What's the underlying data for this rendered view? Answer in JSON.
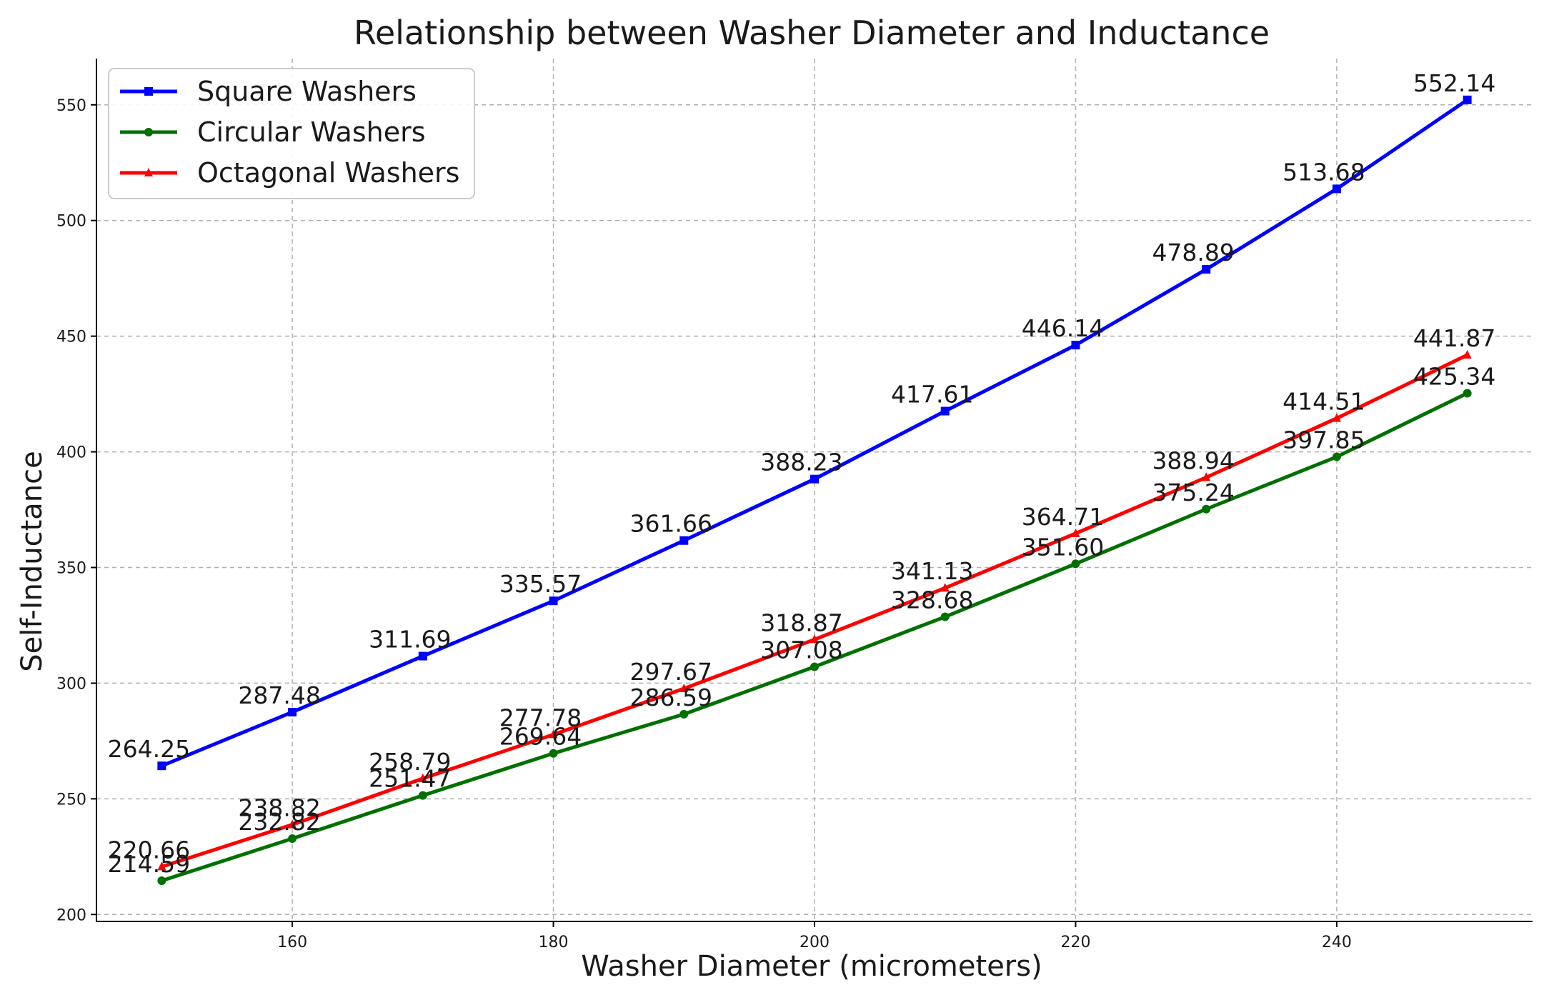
{
  "chart_data": {
    "type": "line",
    "title": "Relationship between Washer Diameter and Inductance",
    "xlabel": "Washer Diameter (micrometers)",
    "ylabel": "Self-Inductance",
    "x": [
      150,
      160,
      170,
      180,
      190,
      200,
      210,
      220,
      230,
      240,
      250
    ],
    "xlim": [
      145,
      255
    ],
    "ylim": [
      197,
      570
    ],
    "xticks": [
      160,
      180,
      200,
      220,
      240
    ],
    "yticks": [
      200,
      250,
      300,
      350,
      400,
      450,
      500,
      550
    ],
    "grid": true,
    "legend_position": "top-left",
    "series": [
      {
        "name": "Square Washers",
        "color": "#0000ff",
        "marker": "square",
        "values": [
          264.25,
          287.48,
          311.69,
          335.57,
          361.66,
          388.23,
          417.61,
          446.14,
          478.89,
          513.68,
          552.14
        ],
        "labels": [
          "264.25",
          "287.48",
          "311.69",
          "335.57",
          "361.66",
          "388.23",
          "417.61",
          "446.14",
          "478.89",
          "513.68",
          "552.14"
        ]
      },
      {
        "name": "Circular Washers",
        "color": "#007000",
        "marker": "circle",
        "values": [
          214.59,
          232.82,
          251.47,
          269.64,
          286.59,
          307.08,
          328.68,
          351.6,
          375.24,
          397.85,
          425.34
        ],
        "labels": [
          "214.59",
          "232.82",
          "251.47",
          "269.64",
          "286.59",
          "307.08",
          "328.68",
          "351.60",
          "375.24",
          "397.85",
          "425.34"
        ]
      },
      {
        "name": "Octagonal Washers",
        "color": "#ff0000",
        "marker": "triangle",
        "values": [
          220.66,
          238.82,
          258.79,
          277.78,
          297.67,
          318.87,
          341.13,
          364.71,
          388.94,
          414.51,
          441.87
        ],
        "labels": [
          "220.66",
          "238.82",
          "258.79",
          "277.78",
          "297.67",
          "318.87",
          "341.13",
          "364.71",
          "388.94",
          "414.51",
          "441.87"
        ]
      }
    ]
  }
}
